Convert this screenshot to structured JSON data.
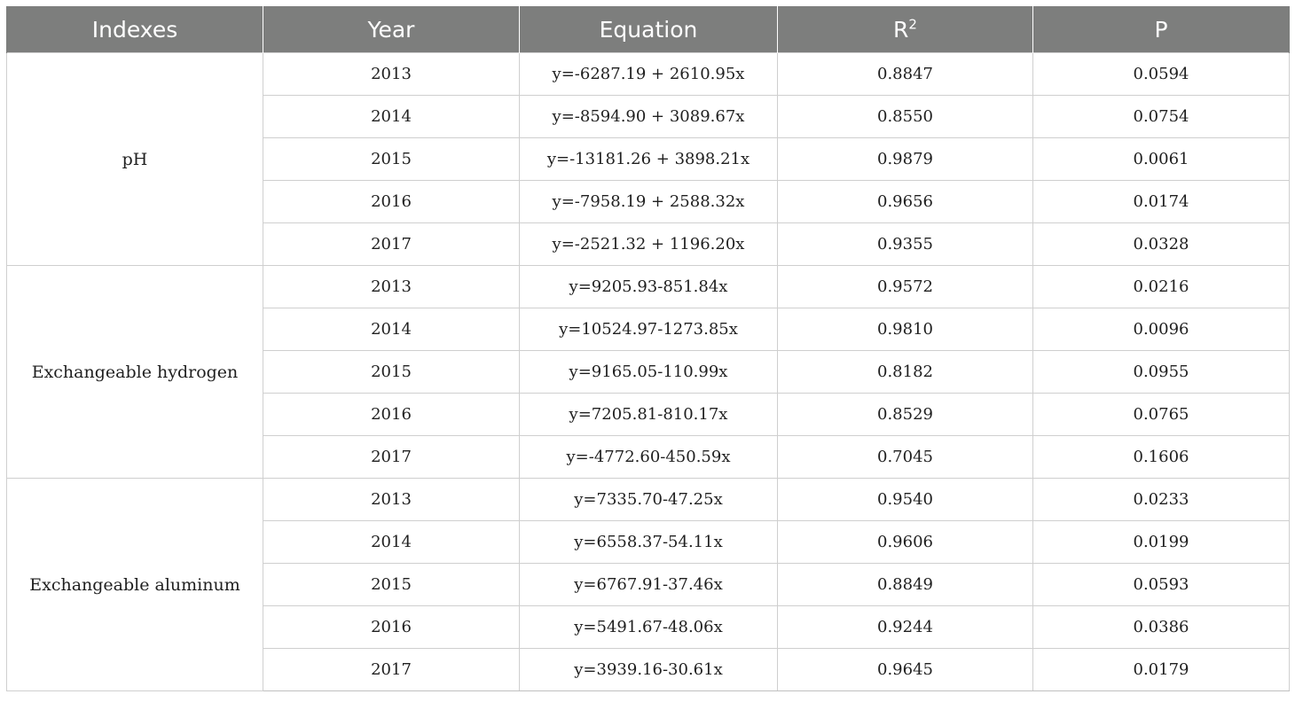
{
  "table": {
    "headers": {
      "indexes": "Indexes",
      "year": "Year",
      "equation": "Equation",
      "r2_base": "R",
      "r2_sup": "2",
      "p": "P"
    },
    "groups": [
      {
        "index": "pH",
        "rows": [
          {
            "year": "2013",
            "equation": "y=-6287.19 + 2610.95x",
            "r2": "0.8847",
            "p": "0.0594"
          },
          {
            "year": "2014",
            "equation": "y=-8594.90 + 3089.67x",
            "r2": "0.8550",
            "p": "0.0754"
          },
          {
            "year": "2015",
            "equation": "y=-13181.26 + 3898.21x",
            "r2": "0.9879",
            "p": "0.0061"
          },
          {
            "year": "2016",
            "equation": "y=-7958.19 + 2588.32x",
            "r2": "0.9656",
            "p": "0.0174"
          },
          {
            "year": "2017",
            "equation": "y=-2521.32 + 1196.20x",
            "r2": "0.9355",
            "p": "0.0328"
          }
        ]
      },
      {
        "index": "Exchangeable hydrogen",
        "rows": [
          {
            "year": "2013",
            "equation": "y=9205.93-851.84x",
            "r2": "0.9572",
            "p": "0.0216"
          },
          {
            "year": "2014",
            "equation": "y=10524.97-1273.85x",
            "r2": "0.9810",
            "p": "0.0096"
          },
          {
            "year": "2015",
            "equation": "y=9165.05-110.99x",
            "r2": "0.8182",
            "p": "0.0955"
          },
          {
            "year": "2016",
            "equation": "y=7205.81-810.17x",
            "r2": "0.8529",
            "p": "0.0765"
          },
          {
            "year": "2017",
            "equation": "y=-4772.60-450.59x",
            "r2": "0.7045",
            "p": "0.1606"
          }
        ]
      },
      {
        "index": "Exchangeable aluminum",
        "rows": [
          {
            "year": "2013",
            "equation": "y=7335.70-47.25x",
            "r2": "0.9540",
            "p": "0.0233"
          },
          {
            "year": "2014",
            "equation": "y=6558.37-54.11x",
            "r2": "0.9606",
            "p": "0.0199"
          },
          {
            "year": "2015",
            "equation": "y=6767.91-37.46x",
            "r2": "0.8849",
            "p": "0.0593"
          },
          {
            "year": "2016",
            "equation": "y=5491.67-48.06x",
            "r2": "0.9244",
            "p": "0.0386"
          },
          {
            "year": "2017",
            "equation": "y=3939.16-30.61x",
            "r2": "0.9645",
            "p": "0.0179"
          }
        ]
      }
    ]
  }
}
